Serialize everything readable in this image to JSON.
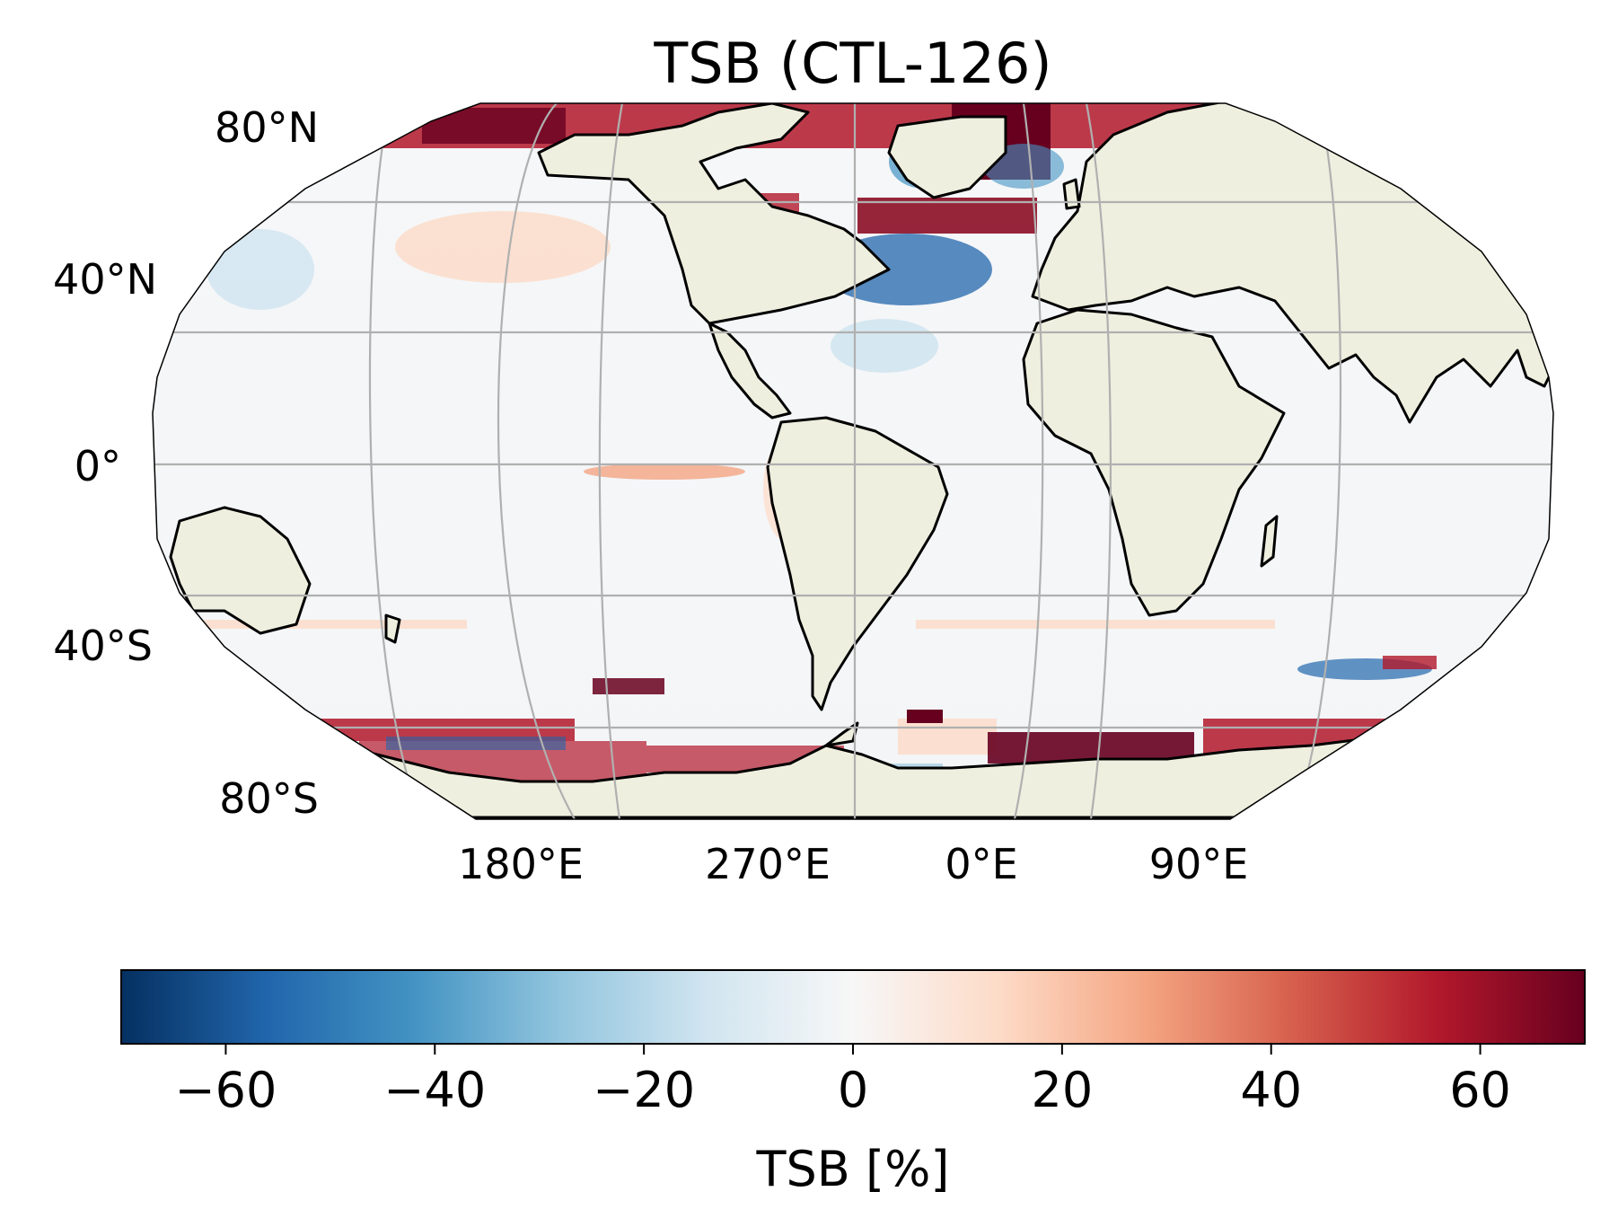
{
  "figure": {
    "title": "TSB (CTL-126)",
    "projection": "Robinson (central longitude ~ -30)",
    "lat_labels": [
      "80°N",
      "40°N",
      "0°",
      "40°S",
      "80°S"
    ],
    "lon_labels": [
      "180°E",
      "270°E",
      "0°E",
      "90°E"
    ],
    "colors": {
      "land": "#efefdf",
      "coastline": "#000000",
      "gridline": "#b0b0b0"
    }
  },
  "colorbar": {
    "label": "TSB [%]",
    "ticks": [
      "−60",
      "−40",
      "−20",
      "0",
      "20",
      "40",
      "60"
    ],
    "range": [
      -70,
      70
    ],
    "colormap": "RdBu_r",
    "stops": [
      "#053061",
      "#2166ac",
      "#4393c3",
      "#92c5de",
      "#d1e5f0",
      "#f7f7f7",
      "#fddbc7",
      "#f4a582",
      "#d6604d",
      "#b2182b",
      "#67001f"
    ]
  },
  "map_features": {
    "description_regions": [
      {
        "name": "Arctic Ocean",
        "value_tendency": "strongly positive"
      },
      {
        "name": "North Atlantic subpolar gyre",
        "value_tendency": "strongly positive"
      },
      {
        "name": "Gulf Stream region",
        "value_tendency": "negative"
      },
      {
        "name": "Equatorial Pacific",
        "value_tendency": "weakly positive"
      },
      {
        "name": "Southern Ocean near Antarctica",
        "value_tendency": "mixed, strongly positive"
      }
    ]
  }
}
